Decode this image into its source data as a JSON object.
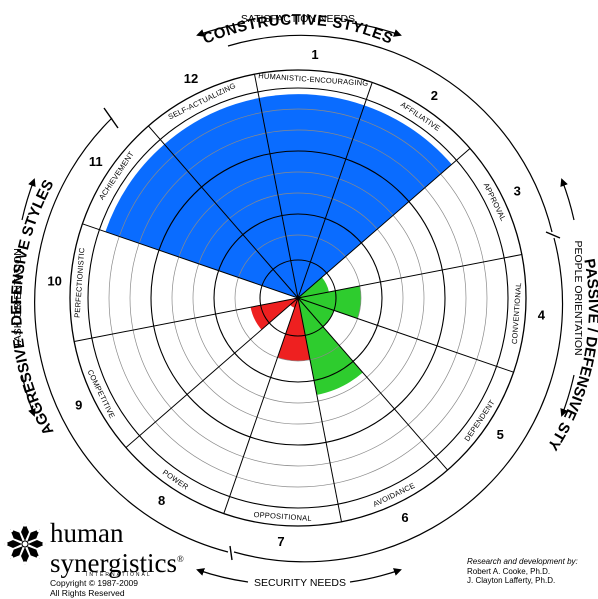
{
  "title": "CONSTRUCTIVE STYLES",
  "group_titles": {
    "passive": "PASSIVE / DEFENSIVE STYLES",
    "aggressive": "AGGRESSIVE / DEFENSIVE STYLES"
  },
  "axis_labels": {
    "top": "SATISFACTION NEEDS",
    "bottom": "SECURITY NEEDS",
    "left": "TASK ORIENTATION",
    "right": "PEOPLE ORIENTATION"
  },
  "segments": [
    {
      "number": "1",
      "label": "HUMANISTIC-ENCOURAGING",
      "value": 0.97,
      "color": "#0a6cff"
    },
    {
      "number": "2",
      "label": "AFFILIATIVE",
      "value": 0.97,
      "color": "#0a6cff"
    },
    {
      "number": "3",
      "label": "APPROVAL",
      "value": 0.15,
      "color": "#2ecc2e"
    },
    {
      "number": "4",
      "label": "CONVENTIONAL",
      "value": 0.3,
      "color": "#2ecc2e"
    },
    {
      "number": "5",
      "label": "DEPENDENT",
      "value": 0.18,
      "color": "#2ecc2e"
    },
    {
      "number": "6",
      "label": "AVOIDANCE",
      "value": 0.47,
      "color": "#2ecc2e"
    },
    {
      "number": "7",
      "label": "OPPOSITIONAL",
      "value": 0.3,
      "color": "#ee2020"
    },
    {
      "number": "8",
      "label": "POWER",
      "value": 0.05,
      "color": "#ee2020"
    },
    {
      "number": "9",
      "label": "COMPETITIVE",
      "value": 0.23,
      "color": "#ee2020"
    },
    {
      "number": "10",
      "label": "PERFECTIONISTIC",
      "value": 0.0,
      "color": "#ee2020"
    },
    {
      "number": "11",
      "label": "ACHIEVEMENT",
      "value": 0.97,
      "color": "#0a6cff"
    },
    {
      "number": "12",
      "label": "SELF-ACTUALIZING",
      "value": 0.97,
      "color": "#0a6cff"
    }
  ],
  "logo": {
    "line1": "human",
    "line2": "synergistics",
    "registered": "®",
    "international": "INTERNATIONAL",
    "copyright": "Copyright © 1987-2009",
    "rights": "All Rights Reserved"
  },
  "credits": {
    "title": "Research and development by:",
    "author1": "Robert A. Cooke, Ph.D.",
    "author2": "J. Clayton Lafferty, Ph.D."
  }
}
